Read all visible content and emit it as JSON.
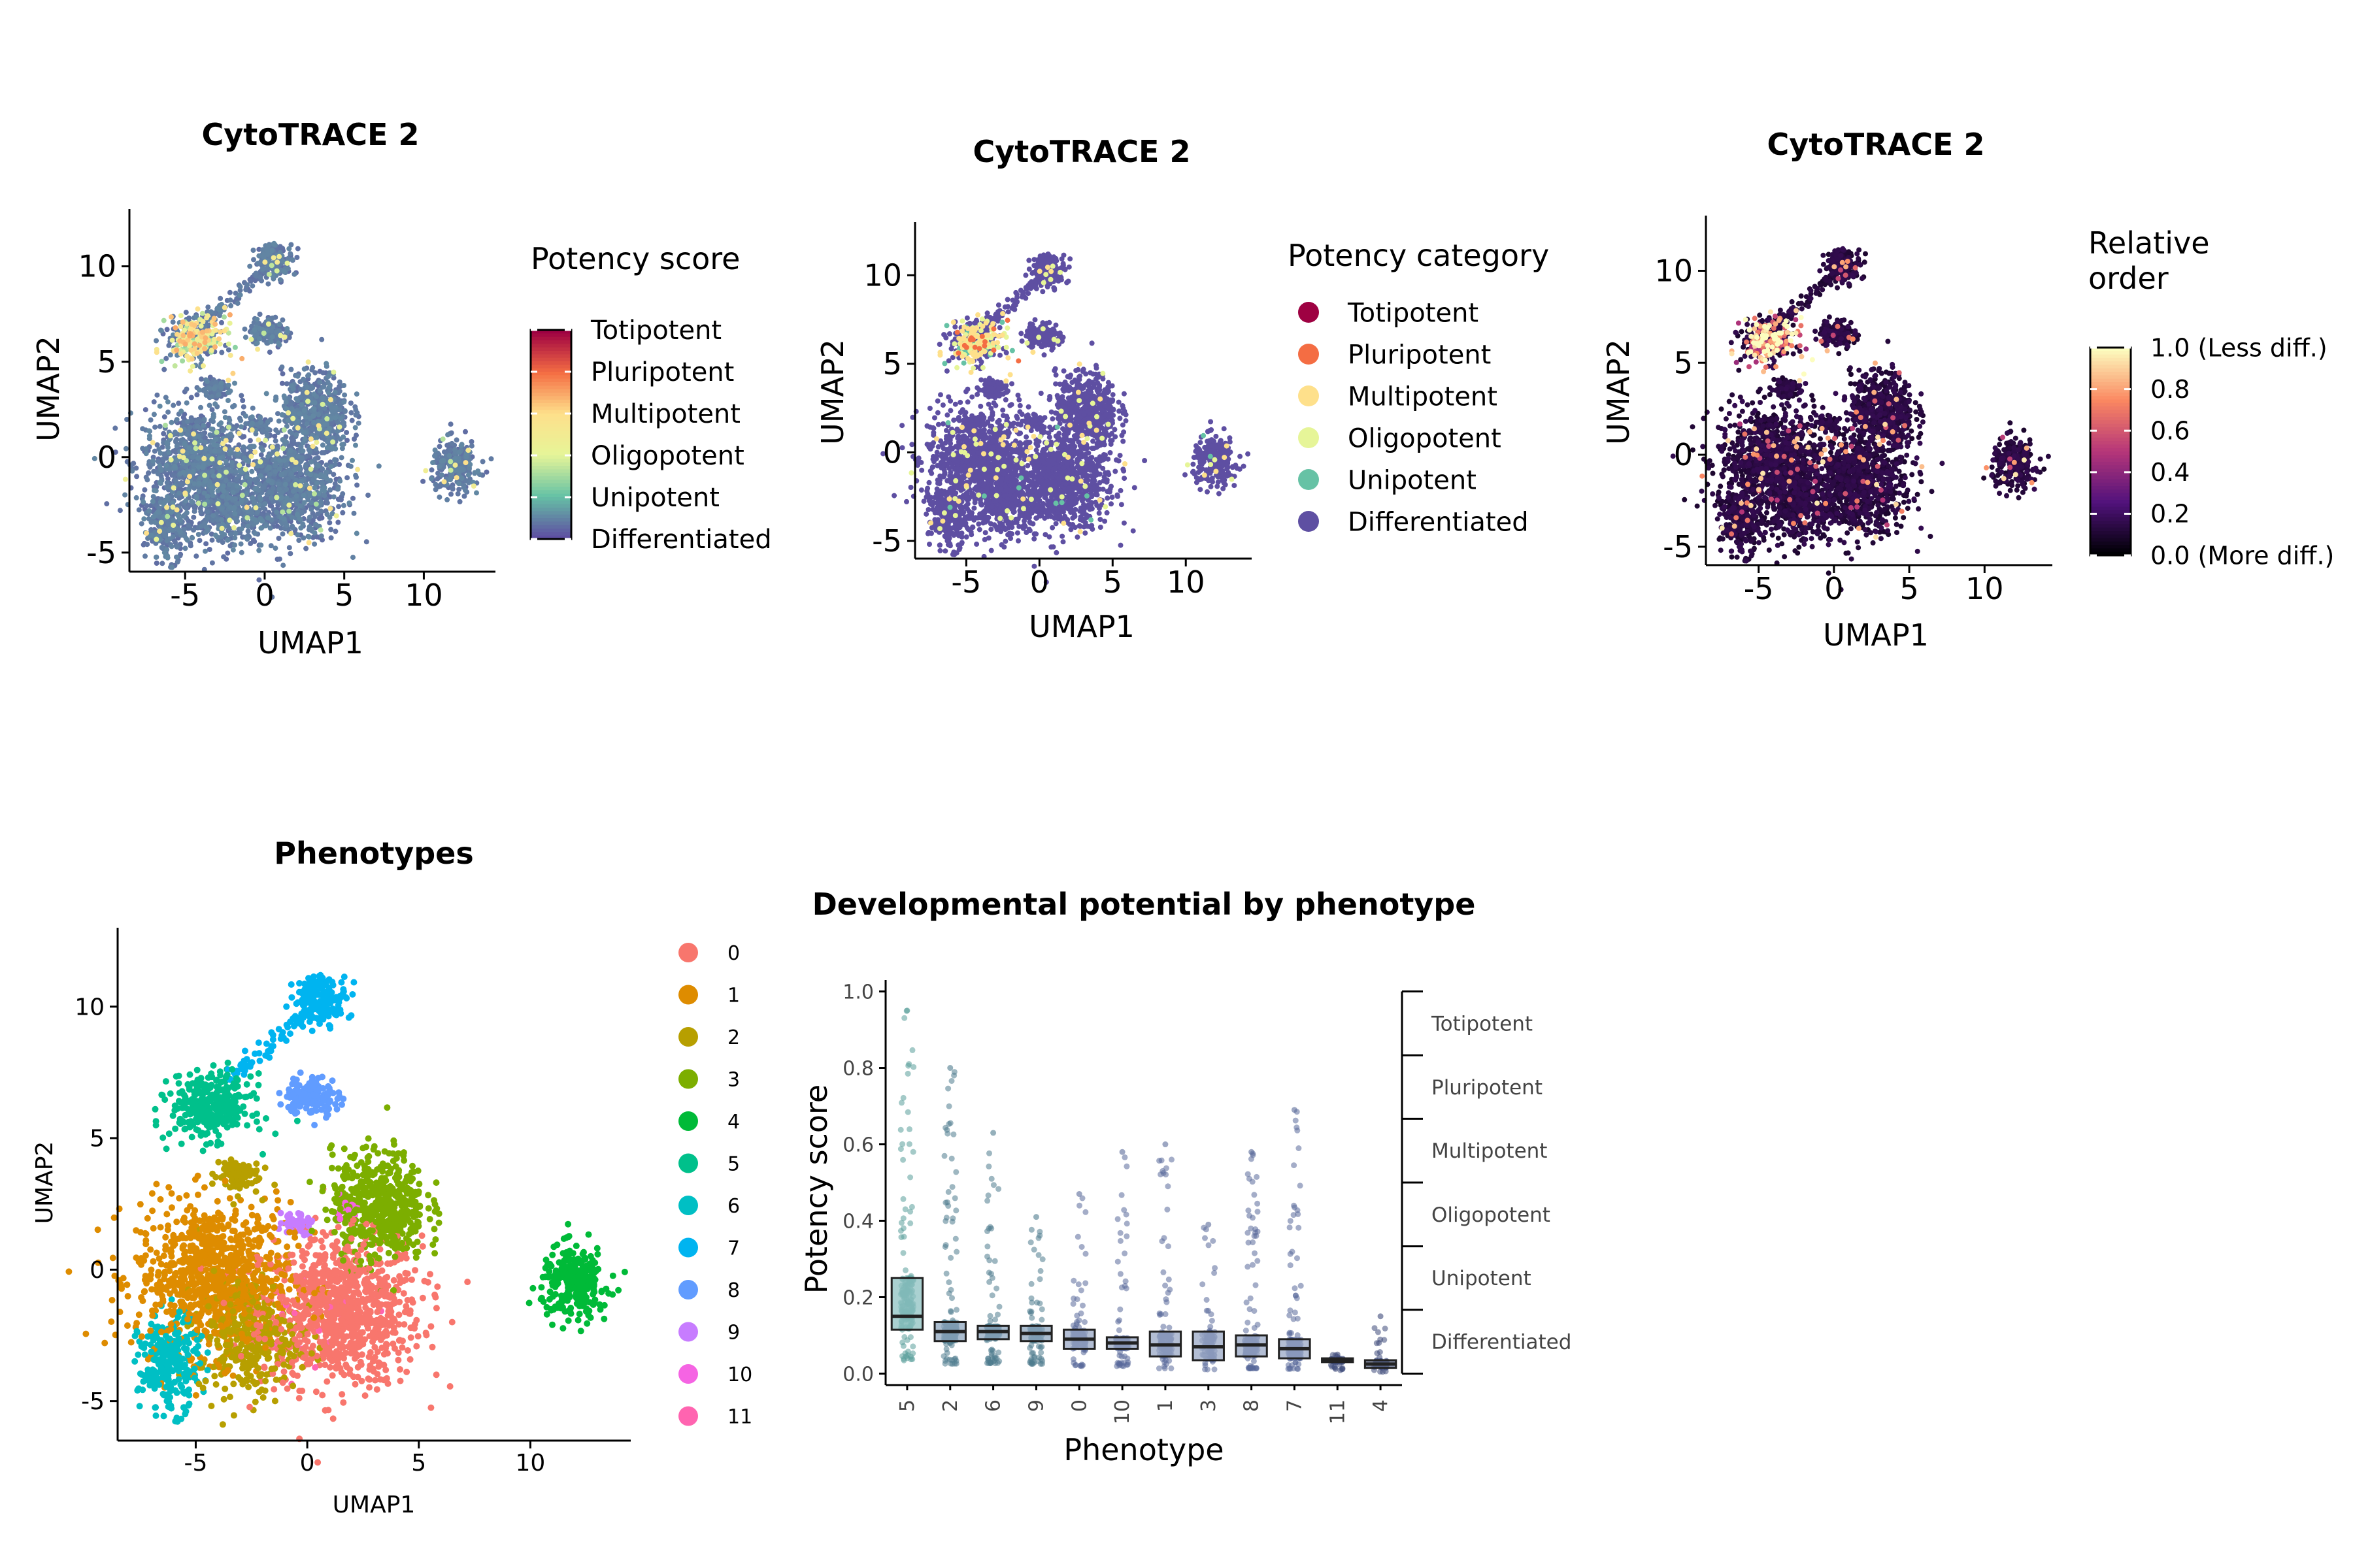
{
  "colors": {
    "axis": "#000000",
    "potency_gradient": [
      "#5E4FA2",
      "#66C2A5",
      "#E6F598",
      "#FEE08B",
      "#F46D43",
      "#9E0142"
    ],
    "relative_gradient": [
      "#000004",
      "#51127C",
      "#B63679",
      "#FB8861",
      "#FCFDBF"
    ]
  },
  "chart_data": [
    {
      "id": "umap_potency_score",
      "type": "scatter",
      "title": "CytoTRACE 2",
      "xlabel": "UMAP1",
      "ylabel": "UMAP2",
      "xlim": [
        -8.5,
        14.5
      ],
      "ylim": [
        -6.0,
        13.0
      ],
      "xticks": [
        -5,
        0,
        5,
        10
      ],
      "yticks": [
        -5,
        0,
        5,
        10
      ],
      "color_mode": "potency",
      "legend": {
        "title": "Potency score",
        "kind": "colorbar",
        "labels": [
          "Totipotent",
          "Pluripotent",
          "Multipotent",
          "Oligopotent",
          "Unipotent",
          "Differentiated"
        ]
      }
    },
    {
      "id": "umap_potency_category",
      "type": "scatter",
      "title": "CytoTRACE 2",
      "xlabel": "UMAP1",
      "ylabel": "UMAP2",
      "xlim": [
        -8.5,
        14.5
      ],
      "ylim": [
        -6.0,
        13.0
      ],
      "xticks": [
        -5,
        0,
        5,
        10
      ],
      "yticks": [
        -5,
        0,
        5,
        10
      ],
      "color_mode": "category",
      "legend": {
        "title": "Potency category",
        "kind": "points",
        "entries": [
          {
            "label": "Totipotent",
            "color": "#9E0142"
          },
          {
            "label": "Pluripotent",
            "color": "#F46D43"
          },
          {
            "label": "Multipotent",
            "color": "#FEE08B"
          },
          {
            "label": "Oligopotent",
            "color": "#E6F598"
          },
          {
            "label": "Unipotent",
            "color": "#66C2A5"
          },
          {
            "label": "Differentiated",
            "color": "#5E4FA2"
          }
        ]
      }
    },
    {
      "id": "umap_relative_order",
      "type": "scatter",
      "title": "CytoTRACE 2",
      "xlabel": "UMAP1",
      "ylabel": "UMAP2",
      "xlim": [
        -8.5,
        14.5
      ],
      "ylim": [
        -6.0,
        13.0
      ],
      "xticks": [
        -5,
        0,
        5,
        10
      ],
      "yticks": [
        -5,
        0,
        5,
        10
      ],
      "color_mode": "relative",
      "legend": {
        "title_lines": [
          "Relative",
          "order"
        ],
        "kind": "colorbar",
        "labels": [
          "1.0 (Less diff.)",
          "0.8",
          "0.6",
          "0.4",
          "0.2",
          "0.0 (More diff.)"
        ]
      }
    },
    {
      "id": "umap_phenotypes",
      "type": "scatter",
      "title": "Phenotypes",
      "xlabel": "UMAP1",
      "ylabel": "UMAP2",
      "xlim": [
        -8.5,
        14.5
      ],
      "ylim": [
        -6.5,
        13.0
      ],
      "xticks": [
        -5,
        0,
        5,
        10
      ],
      "yticks": [
        -5,
        0,
        5,
        10
      ],
      "color_mode": "phenotype",
      "legend": {
        "kind": "points",
        "entries": [
          {
            "label": "0",
            "color": "#F8766D"
          },
          {
            "label": "1",
            "color": "#DE8C00"
          },
          {
            "label": "2",
            "color": "#B79F00"
          },
          {
            "label": "3",
            "color": "#7CAE00"
          },
          {
            "label": "4",
            "color": "#00BA38"
          },
          {
            "label": "5",
            "color": "#00C08B"
          },
          {
            "label": "6",
            "color": "#00BFC4"
          },
          {
            "label": "7",
            "color": "#00B4F0"
          },
          {
            "label": "8",
            "color": "#619CFF"
          },
          {
            "label": "9",
            "color": "#C77CFF"
          },
          {
            "label": "10",
            "color": "#F564E3"
          },
          {
            "label": "11",
            "color": "#FF64B0"
          }
        ]
      }
    },
    {
      "id": "potency_boxplot",
      "type": "box",
      "title": "Developmental potential by phenotype",
      "xlabel": "Phenotype",
      "ylabel": "Potency score",
      "ylim": [
        -0.03,
        1.03
      ],
      "yticks": [
        0.0,
        0.2,
        0.4,
        0.6,
        0.8,
        1.0
      ],
      "ytick_labels": [
        "0.0",
        "0.2",
        "0.4",
        "0.6",
        "0.8",
        "1.0"
      ],
      "categories": [
        "5",
        "2",
        "6",
        "9",
        "0",
        "10",
        "1",
        "3",
        "8",
        "7",
        "11",
        "4"
      ],
      "median": [
        0.15,
        0.11,
        0.11,
        0.105,
        0.09,
        0.08,
        0.075,
        0.07,
        0.075,
        0.065,
        0.035,
        0.025
      ],
      "q1": [
        0.115,
        0.085,
        0.09,
        0.085,
        0.065,
        0.065,
        0.045,
        0.035,
        0.045,
        0.04,
        0.03,
        0.015
      ],
      "q3": [
        0.25,
        0.135,
        0.125,
        0.125,
        0.115,
        0.095,
        0.11,
        0.11,
        0.1,
        0.09,
        0.04,
        0.035
      ],
      "max_point": [
        0.95,
        0.8,
        0.63,
        0.41,
        0.47,
        0.58,
        0.6,
        0.39,
        0.58,
        0.69,
        0.05,
        0.15
      ],
      "box_fill": [
        "#8EC1C1",
        "#8FA7BF",
        "#8FA7BF",
        "#8FA7BF",
        "#9AA8C6",
        "#9AA8C6",
        "#9AA8C6",
        "#9AA8C6",
        "#9AA8C6",
        "#9AA8C6",
        "#5E6A8A",
        "#5E6A8A"
      ],
      "point_color": [
        "#5A9E9A",
        "#4E7C8E",
        "#4E7C8E",
        "#4E7C8E",
        "#5A6A9A",
        "#5A6A9A",
        "#5A6A9A",
        "#5A6A9A",
        "#5A6A9A",
        "#5A6A9A",
        "#3E4A7A",
        "#3E4A7A"
      ],
      "category_bands": [
        "Totipotent",
        "Pluripotent",
        "Multipotent",
        "Oligopotent",
        "Unipotent",
        "Differentiated"
      ],
      "band_breaks": [
        0.0,
        0.167,
        0.333,
        0.5,
        0.667,
        0.833,
        1.0
      ]
    }
  ]
}
